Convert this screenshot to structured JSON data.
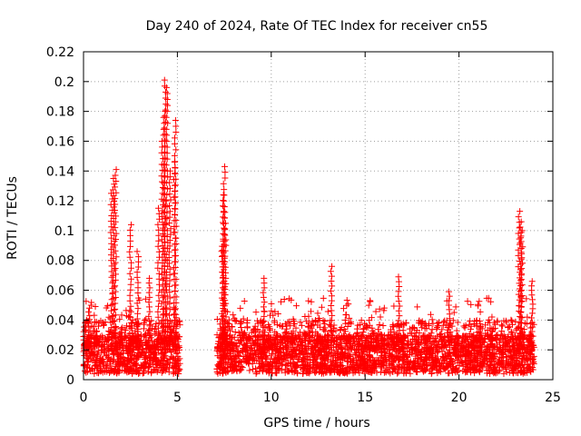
{
  "chart_data": {
    "type": "scatter",
    "title": "Day 240 of 2024, Rate Of TEC Index for receiver cn55",
    "xlabel": "GPS time / hours",
    "ylabel": "ROTI / TECUs",
    "xlim": [
      0,
      25
    ],
    "ylim": [
      0,
      0.22
    ],
    "xticks": [
      0,
      5,
      10,
      15,
      20,
      25
    ],
    "yticks": [
      0,
      0.02,
      0.04,
      0.06,
      0.08,
      0.1,
      0.12,
      0.14,
      0.16,
      0.18,
      0.2,
      0.22
    ],
    "grid": true,
    "marker": "+",
    "point_color": "#ff0000",
    "background_color": "#ffffff",
    "segments": [
      {
        "start": 0.0,
        "end": 5.15
      },
      {
        "start": 7.1,
        "end": 24.0
      }
    ],
    "peaks": [
      {
        "x": 0.3,
        "y": 0.048
      },
      {
        "x": 1.5,
        "y": 0.125
      },
      {
        "x": 1.6,
        "y": 0.135
      },
      {
        "x": 1.7,
        "y": 0.141
      },
      {
        "x": 2.5,
        "y": 0.104
      },
      {
        "x": 2.9,
        "y": 0.086
      },
      {
        "x": 3.5,
        "y": 0.068
      },
      {
        "x": 4.0,
        "y": 0.115
      },
      {
        "x": 4.2,
        "y": 0.16
      },
      {
        "x": 4.3,
        "y": 0.18
      },
      {
        "x": 4.35,
        "y": 0.201
      },
      {
        "x": 4.45,
        "y": 0.196
      },
      {
        "x": 4.6,
        "y": 0.14
      },
      {
        "x": 4.85,
        "y": 0.146
      },
      {
        "x": 4.9,
        "y": 0.174
      },
      {
        "x": 7.4,
        "y": 0.093
      },
      {
        "x": 7.45,
        "y": 0.124
      },
      {
        "x": 7.5,
        "y": 0.143
      },
      {
        "x": 7.55,
        "y": 0.116
      },
      {
        "x": 9.6,
        "y": 0.068
      },
      {
        "x": 13.2,
        "y": 0.076
      },
      {
        "x": 16.8,
        "y": 0.069
      },
      {
        "x": 19.5,
        "y": 0.059
      },
      {
        "x": 23.2,
        "y": 0.113
      },
      {
        "x": 23.3,
        "y": 0.106
      },
      {
        "x": 23.35,
        "y": 0.1
      },
      {
        "x": 23.9,
        "y": 0.066
      }
    ]
  }
}
